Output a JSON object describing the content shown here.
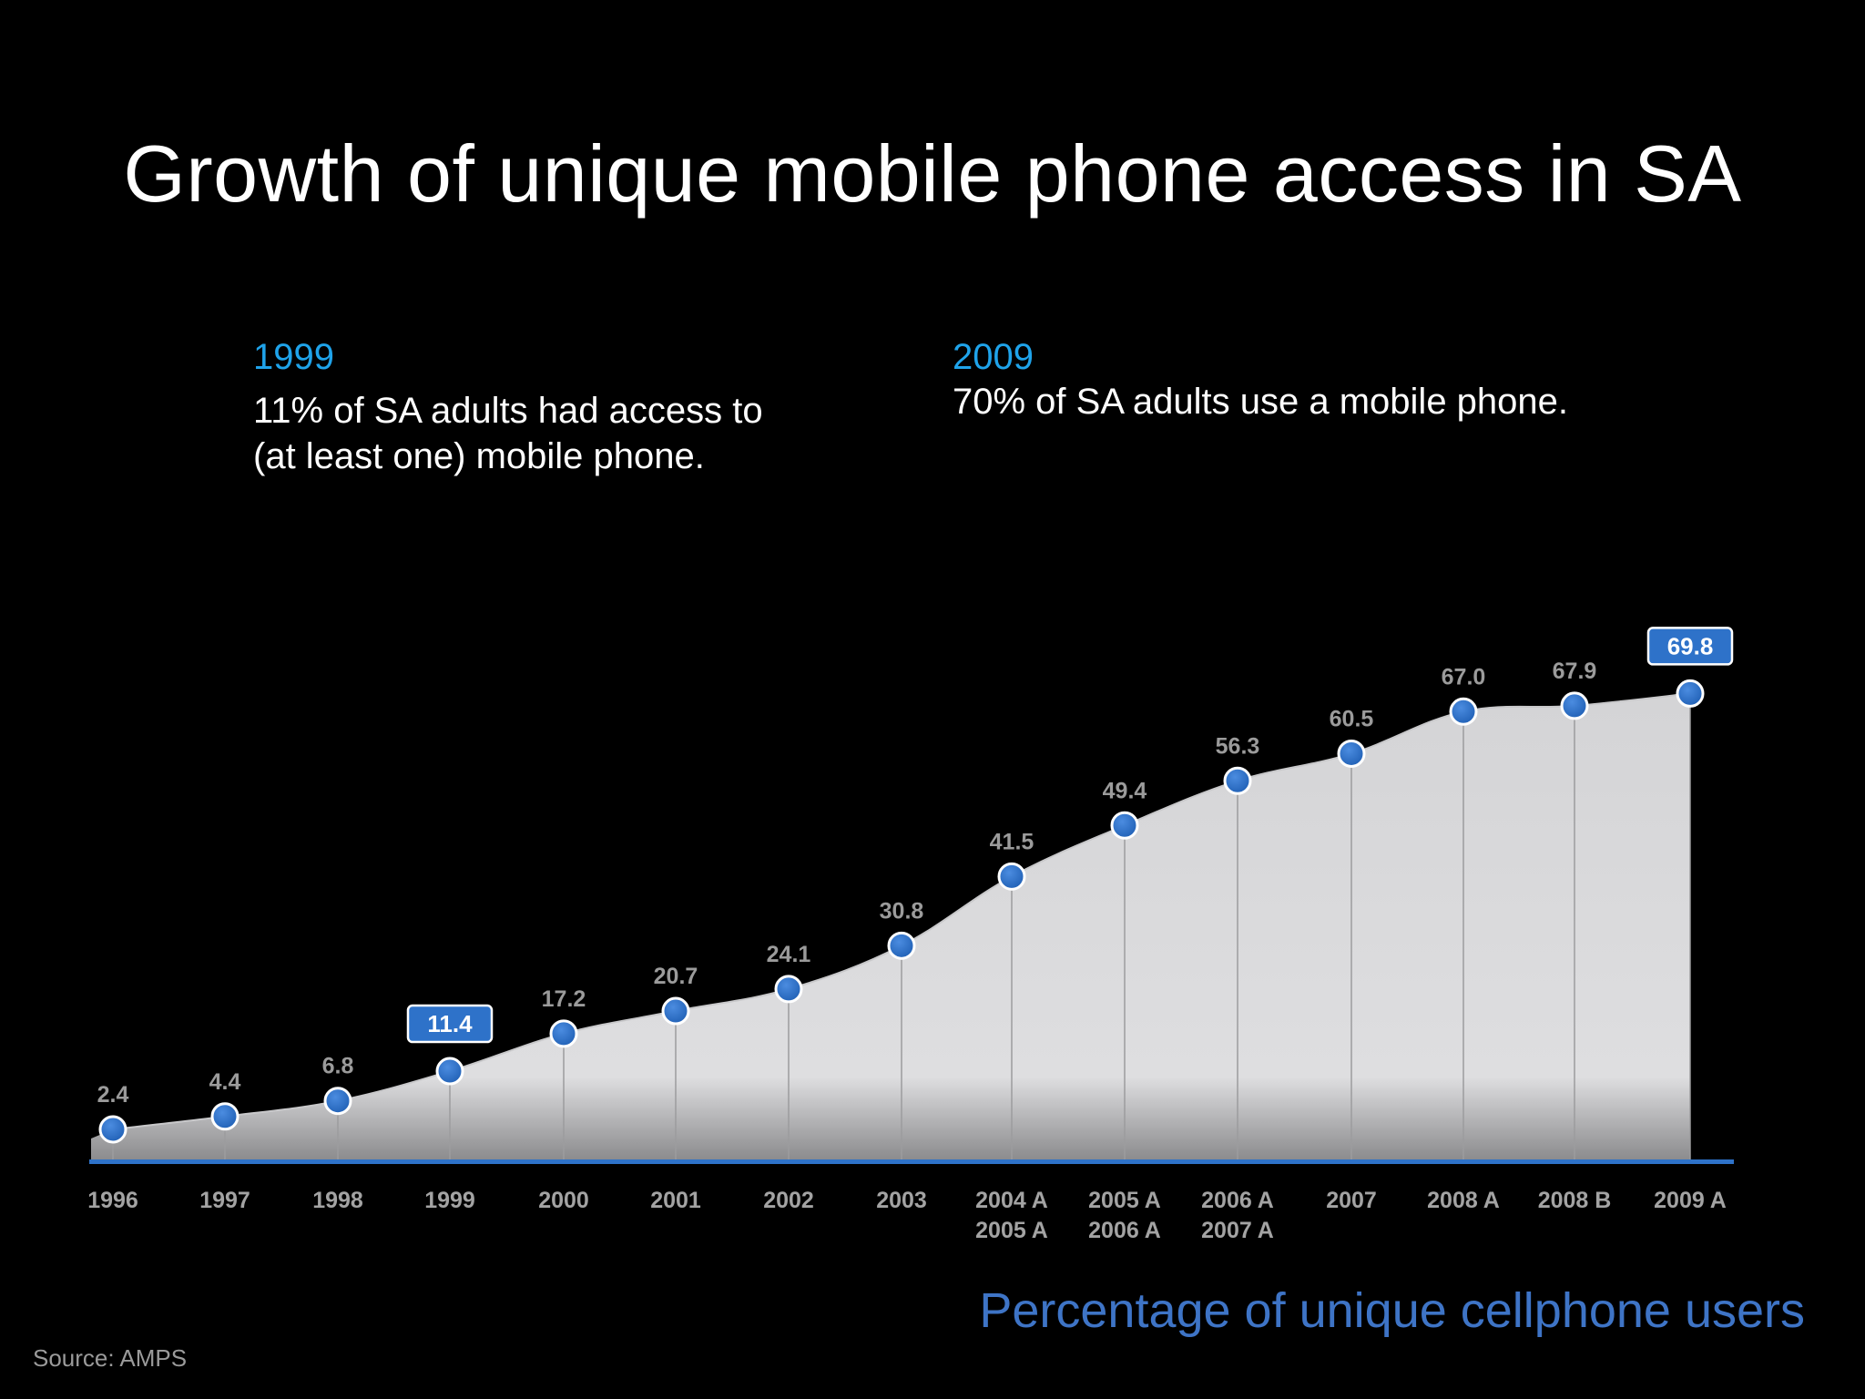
{
  "slide": {
    "title": "Growth of unique mobile phone access in SA",
    "source": "Source: AMPS"
  },
  "notes": [
    {
      "year": "1999",
      "text_line1": "11% of SA adults had access to",
      "text_line2": "(at least one) mobile phone."
    },
    {
      "year": "2009",
      "text_line1": "70% of SA adults use a mobile phone.",
      "text_line2": ""
    }
  ],
  "chart_data": {
    "type": "area",
    "title": "Percentage of unique cellphone users",
    "xlabel": "",
    "ylabel": "",
    "categories": [
      [
        "1996"
      ],
      [
        "1997"
      ],
      [
        "1998"
      ],
      [
        "1999"
      ],
      [
        "2000"
      ],
      [
        "2001"
      ],
      [
        "2002"
      ],
      [
        "2003"
      ],
      [
        "2004 A",
        "2005 A"
      ],
      [
        "2005 A",
        "2006 A"
      ],
      [
        "2006 A",
        "2007 A"
      ],
      [
        "2007"
      ],
      [
        "2008 A"
      ],
      [
        "2008 B"
      ],
      [
        "2009 A"
      ]
    ],
    "values": [
      2.4,
      4.4,
      6.8,
      11.4,
      17.2,
      20.7,
      24.1,
      30.8,
      41.5,
      49.4,
      56.3,
      60.5,
      67.0,
      67.9,
      69.8
    ],
    "value_labels": [
      "2.4",
      "4.4",
      "6.8",
      "11.4",
      "17.2",
      "20.7",
      "24.1",
      "30.8",
      "41.5",
      "49.4",
      "56.3",
      "60.5",
      "67.0",
      "67.9",
      "69.8"
    ],
    "highlighted_indices": [
      3,
      14
    ],
    "ylim": [
      0,
      70
    ],
    "grid": false,
    "legend": "none",
    "colors": {
      "area_fill": "#d9d9db",
      "marker": "#2e72c9",
      "baseline": "#2e72c9",
      "value_label": "#9b9b9b",
      "tick_label": "#a3a3a3",
      "highlight_box": "#2e72c9"
    }
  }
}
